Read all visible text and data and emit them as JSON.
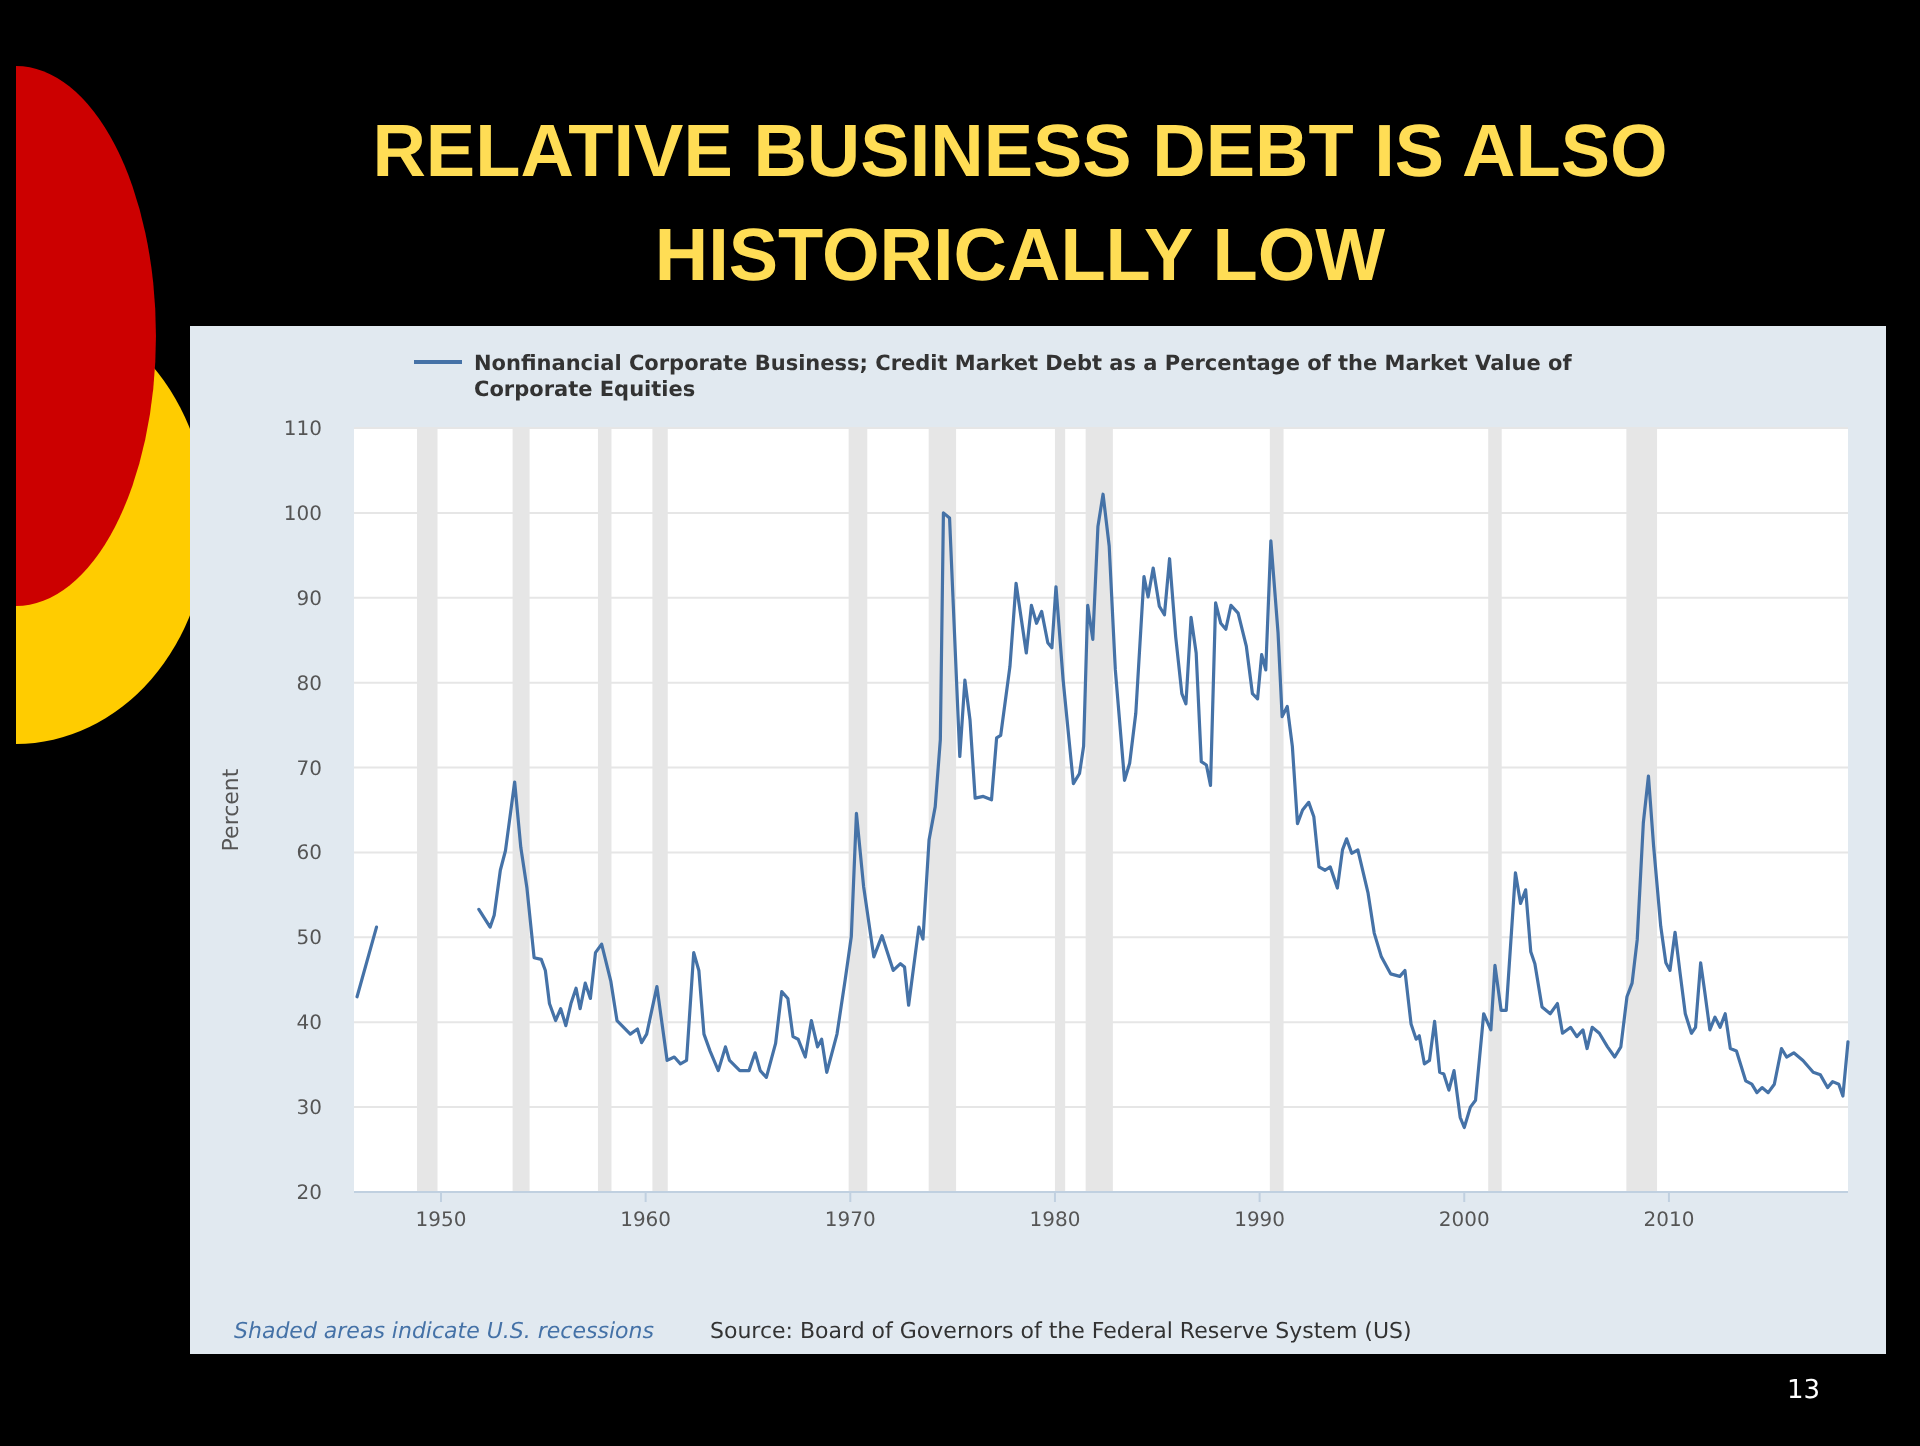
{
  "chart_data": {
    "type": "line",
    "title": "RELATIVE BUSINESS DEBT IS ALSO HISTORICALLY LOW",
    "ylabel": "Percent",
    "x": [
      1945.9,
      1946.85,
      1949,
      1951.85,
      1952.4,
      1952.6,
      1952.9,
      1953.15,
      1953.6,
      1953.9,
      1954.2,
      1954.55,
      1954.9,
      1955.1,
      1955.3,
      1955.6,
      1955.85,
      1956.1,
      1956.35,
      1956.6,
      1956.8,
      1957.05,
      1957.3,
      1957.55,
      1957.85,
      1958.3,
      1958.6,
      1959.25,
      1959.6,
      1959.8,
      1960.05,
      1960.55,
      1961.05,
      1961.4,
      1961.7,
      1962.0,
      1962.35,
      1962.6,
      1962.85,
      1963.15,
      1963.55,
      1963.9,
      1964.1,
      1964.6,
      1965.05,
      1965.35,
      1965.6,
      1965.9,
      1966.35,
      1966.65,
      1966.95,
      1967.2,
      1967.45,
      1967.8,
      1968.1,
      1968.4,
      1968.6,
      1968.85,
      1969.35,
      1969.75,
      1970.05,
      1970.3,
      1970.65,
      1971.15,
      1971.55,
      1972.1,
      1972.45,
      1972.65,
      1972.85,
      1973.35,
      1973.55,
      1973.85,
      1974.15,
      1974.4,
      1974.55,
      1974.85,
      1975.35,
      1975.6,
      1975.85,
      1976.1,
      1976.5,
      1976.9,
      1977.15,
      1977.35,
      1977.8,
      1978.1,
      1978.6,
      1978.85,
      1979.1,
      1979.35,
      1979.65,
      1979.85,
      1980.05,
      1980.4,
      1980.9,
      1981.2,
      1981.4,
      1981.6,
      1981.85,
      1982.1,
      1982.35,
      1982.65,
      1982.95,
      1983.4,
      1983.65,
      1983.95,
      1984.35,
      1984.55,
      1984.8,
      1985.1,
      1985.35,
      1985.6,
      1985.9,
      1986.2,
      1986.4,
      1986.65,
      1986.9,
      1987.15,
      1987.4,
      1987.6,
      1987.85,
      1988.1,
      1988.35,
      1988.6,
      1988.95,
      1989.35,
      1989.65,
      1989.9,
      1990.1,
      1990.3,
      1990.55,
      1990.9,
      1991.1,
      1991.35,
      1991.6,
      1991.85,
      1992.1,
      1992.4,
      1992.65,
      1992.9,
      1993.2,
      1993.45,
      1993.8,
      1994.05,
      1994.25,
      1994.5,
      1994.8,
      1995.3,
      1995.6,
      1995.95,
      1996.4,
      1996.85,
      1997.1,
      1997.4,
      1997.65,
      1997.8,
      1998.05,
      1998.3,
      1998.55,
      1998.8,
      1999.0,
      1999.25,
      1999.5,
      1999.8,
      2000.0,
      2000.3,
      2000.55,
      2000.95,
      2001.3,
      2001.5,
      2001.8,
      2002.05,
      2002.5,
      2002.75,
      2003.0,
      2003.25,
      2003.45,
      2003.8,
      2004.2,
      2004.55,
      2004.8,
      2005.2,
      2005.5,
      2005.8,
      2006.0,
      2006.25,
      2006.6,
      2007.0,
      2007.35,
      2007.65,
      2007.95,
      2008.2,
      2008.45,
      2008.75,
      2009.0,
      2009.25,
      2009.6,
      2009.85,
      2010.05,
      2010.3,
      2010.55,
      2010.8,
      2011.1,
      2011.3,
      2011.55,
      2011.75,
      2012.0,
      2012.25,
      2012.5,
      2012.75,
      2013.0,
      2013.3,
      2013.75,
      2014.05,
      2014.3,
      2014.55,
      2014.85,
      2015.15,
      2015.5,
      2015.75,
      2016.1,
      2016.55,
      2017.05,
      2017.4,
      2017.75,
      2018.0,
      2018.3,
      2018.5,
      2018.75
    ],
    "series": [
      {
        "name": "Nonfinancial Corporate Business; Credit Market Debt as a Percentage of the Market Value of Corporate Equities",
        "color": "#4572a7",
        "values": [
          43.0,
          51.2,
          null,
          53.3,
          51.2,
          52.6,
          57.9,
          60.2,
          68.3,
          60.6,
          55.8,
          47.6,
          47.4,
          46.1,
          42.2,
          40.2,
          41.6,
          39.6,
          42.2,
          44.0,
          41.6,
          44.6,
          42.8,
          48.2,
          49.2,
          44.8,
          40.2,
          38.6,
          39.2,
          37.6,
          38.6,
          44.2,
          35.5,
          35.9,
          35.1,
          35.5,
          48.2,
          46.1,
          38.6,
          36.6,
          34.3,
          37.1,
          35.5,
          34.3,
          34.3,
          36.4,
          34.3,
          33.5,
          37.5,
          43.6,
          42.8,
          38.3,
          38.0,
          35.9,
          40.2,
          37.1,
          38.0,
          34.1,
          38.6,
          45.0,
          50.1,
          64.6,
          56.0,
          47.7,
          50.2,
          46.1,
          46.9,
          46.5,
          42.0,
          51.2,
          49.8,
          61.5,
          65.4,
          73.3,
          100.0,
          99.4,
          71.3,
          80.3,
          75.6,
          66.4,
          66.6,
          66.2,
          73.5,
          73.8,
          81.9,
          91.7,
          83.5,
          89.1,
          87.0,
          88.4,
          84.7,
          84.1,
          91.3,
          80.3,
          68.1,
          69.3,
          72.5,
          89.1,
          85.1,
          98.4,
          102.2,
          96.1,
          81.5,
          68.5,
          70.5,
          76.4,
          92.5,
          90.1,
          93.5,
          89.0,
          88.0,
          94.6,
          85.4,
          78.7,
          77.5,
          87.7,
          83.5,
          70.7,
          70.3,
          67.9,
          89.4,
          87.0,
          86.3,
          89.1,
          88.2,
          84.3,
          78.7,
          78.1,
          83.3,
          81.5,
          96.7,
          85.9,
          76.0,
          77.2,
          72.5,
          63.4,
          65.0,
          65.9,
          64.2,
          58.3,
          57.9,
          58.3,
          55.8,
          60.3,
          61.6,
          59.9,
          60.3,
          55.2,
          50.5,
          47.7,
          45.7,
          45.4,
          46.1,
          39.8,
          38.0,
          38.4,
          35.1,
          35.5,
          40.1,
          34.1,
          33.9,
          32.0,
          34.3,
          28.8,
          27.6,
          30.0,
          30.8,
          41.0,
          39.1,
          46.7,
          41.4,
          41.4,
          57.6,
          54.0,
          55.6,
          48.3,
          46.9,
          41.8,
          41.0,
          42.2,
          38.7,
          39.4,
          38.3,
          39.1,
          36.9,
          39.4,
          38.7,
          37.1,
          35.9,
          37.1,
          43.0,
          44.6,
          49.7,
          63.5,
          69.0,
          60.8,
          51.3,
          47.0,
          46.1,
          50.6,
          45.7,
          41.0,
          38.7,
          39.4,
          47.0,
          43.6,
          39.1,
          40.6,
          39.4,
          41.0,
          36.9,
          36.6,
          33.1,
          32.7,
          31.7,
          32.3,
          31.7,
          32.7,
          36.9,
          35.9,
          36.4,
          35.5,
          34.1,
          33.8,
          32.3,
          33.0,
          32.7,
          31.3,
          37.7
        ]
      }
    ],
    "xlim": [
      1945.75,
      2018.75
    ],
    "xticks": [
      1950,
      1960,
      1970,
      1980,
      1990,
      2000,
      2010
    ],
    "ylim": [
      20,
      110
    ],
    "yticks": [
      20,
      30,
      40,
      50,
      60,
      70,
      80,
      90,
      100,
      110
    ],
    "grid": "y",
    "legend": "top",
    "bands": [
      {
        "axis": "x",
        "from": 1948.83,
        "to": 1949.83,
        "color": "#e6e6e6"
      },
      {
        "axis": "x",
        "from": 1953.5,
        "to": 1954.33,
        "color": "#e6e6e6"
      },
      {
        "axis": "x",
        "from": 1957.67,
        "to": 1958.33,
        "color": "#e6e6e6"
      },
      {
        "axis": "x",
        "from": 1960.33,
        "to": 1961.08,
        "color": "#e6e6e6"
      },
      {
        "axis": "x",
        "from": 1969.92,
        "to": 1970.83,
        "color": "#e6e6e6"
      },
      {
        "axis": "x",
        "from": 1973.83,
        "to": 1975.17,
        "color": "#e6e6e6"
      },
      {
        "axis": "x",
        "from": 1980.0,
        "to": 1980.5,
        "color": "#e6e6e6"
      },
      {
        "axis": "x",
        "from": 1981.5,
        "to": 1982.83,
        "color": "#e6e6e6"
      },
      {
        "axis": "x",
        "from": 1990.5,
        "to": 1991.17,
        "color": "#e6e6e6"
      },
      {
        "axis": "x",
        "from": 2001.17,
        "to": 2001.83,
        "color": "#e6e6e6"
      },
      {
        "axis": "x",
        "from": 2007.92,
        "to": 2009.42,
        "color": "#e6e6e6"
      }
    ],
    "annotations": [
      "Shaded areas indicate U.S. recessions",
      "Source: Board of Governors of the Federal Reserve System (US)",
      "13"
    ]
  }
}
